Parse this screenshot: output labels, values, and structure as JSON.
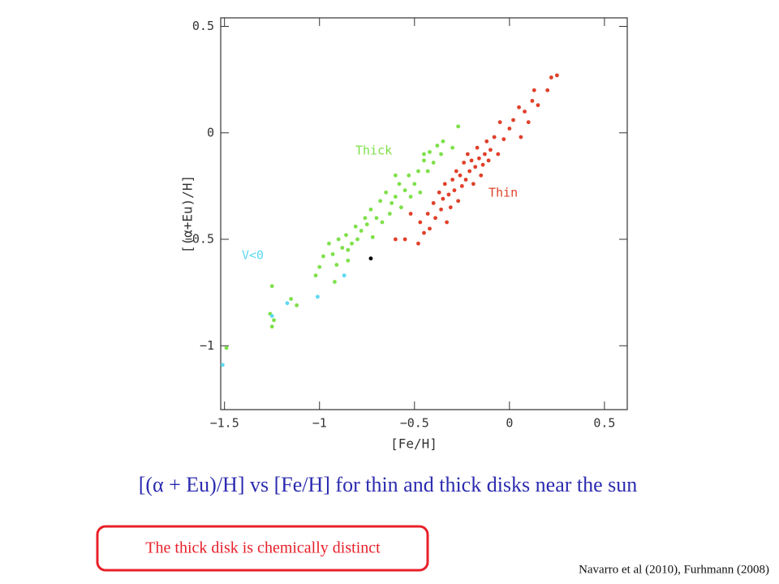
{
  "chart_data": {
    "type": "scatter",
    "xlabel": "[Fe/H]",
    "ylabel": "[(α+Eu)/H]",
    "xlim": [
      -1.52,
      0.62
    ],
    "ylim": [
      -1.3,
      0.54
    ],
    "xticks": [
      {
        "value": -1.5,
        "label": "−1.5"
      },
      {
        "value": -1,
        "label": "−1"
      },
      {
        "value": -0.5,
        "label": "−0.5"
      },
      0,
      0.5
    ],
    "yticks": [
      {
        "value": -1,
        "label": "−1"
      },
      {
        "value": -0.5,
        "label": "−0.5"
      },
      0,
      0.5
    ],
    "series": [
      {
        "name": "Thin",
        "color": "#e0402a",
        "x": [
          -0.48,
          -0.45,
          -0.47,
          -0.43,
          -0.42,
          -0.4,
          -0.39,
          -0.37,
          -0.36,
          -0.35,
          -0.34,
          -0.33,
          -0.32,
          -0.31,
          -0.3,
          -0.29,
          -0.28,
          -0.27,
          -0.26,
          -0.25,
          -0.24,
          -0.23,
          -0.22,
          -0.21,
          -0.2,
          -0.19,
          -0.18,
          -0.17,
          -0.16,
          -0.15,
          -0.14,
          -0.13,
          -0.12,
          -0.11,
          -0.1,
          -0.08,
          -0.06,
          -0.05,
          -0.03,
          0.0,
          0.02,
          0.05,
          0.06,
          0.08,
          0.1,
          0.12,
          0.13,
          0.15,
          0.2,
          0.22,
          0.25,
          -0.55,
          -0.6,
          -0.52
        ],
        "values": [
          -0.52,
          -0.47,
          -0.42,
          -0.38,
          -0.45,
          -0.33,
          -0.4,
          -0.28,
          -0.36,
          -0.31,
          -0.24,
          -0.42,
          -0.29,
          -0.35,
          -0.22,
          -0.27,
          -0.18,
          -0.32,
          -0.2,
          -0.25,
          -0.14,
          -0.22,
          -0.1,
          -0.18,
          -0.13,
          -0.24,
          -0.16,
          -0.07,
          -0.12,
          -0.2,
          -0.15,
          -0.1,
          -0.04,
          -0.13,
          -0.08,
          -0.02,
          -0.1,
          0.05,
          -0.03,
          0.02,
          0.06,
          0.12,
          -0.02,
          0.1,
          0.05,
          0.15,
          0.2,
          0.13,
          0.2,
          0.26,
          0.27,
          -0.5,
          -0.5,
          -0.38
        ]
      },
      {
        "name": "Thick",
        "color": "#7ee04a",
        "x": [
          -1.49,
          -1.25,
          -1.26,
          -1.25,
          -1.24,
          -1.12,
          -1.15,
          -1.02,
          -1.0,
          -0.98,
          -0.95,
          -0.93,
          -0.91,
          -0.9,
          -0.88,
          -0.86,
          -0.85,
          -0.83,
          -0.81,
          -0.8,
          -0.78,
          -0.76,
          -0.75,
          -0.73,
          -0.72,
          -0.7,
          -0.68,
          -0.67,
          -0.65,
          -0.63,
          -0.62,
          -0.6,
          -0.58,
          -0.57,
          -0.55,
          -0.53,
          -0.52,
          -0.5,
          -0.48,
          -0.47,
          -0.45,
          -0.43,
          -0.42,
          -0.4,
          -0.38,
          -0.36,
          -0.35,
          -0.3,
          -0.27,
          -0.45,
          -0.6,
          -0.85,
          -0.92
        ],
        "values": [
          -1.01,
          -0.72,
          -0.85,
          -0.91,
          -0.88,
          -0.81,
          -0.78,
          -0.67,
          -0.63,
          -0.58,
          -0.52,
          -0.57,
          -0.62,
          -0.5,
          -0.54,
          -0.48,
          -0.55,
          -0.52,
          -0.44,
          -0.5,
          -0.46,
          -0.4,
          -0.43,
          -0.36,
          -0.49,
          -0.4,
          -0.32,
          -0.42,
          -0.28,
          -0.38,
          -0.33,
          -0.3,
          -0.24,
          -0.35,
          -0.27,
          -0.2,
          -0.3,
          -0.24,
          -0.18,
          -0.28,
          -0.13,
          -0.18,
          -0.09,
          -0.14,
          -0.06,
          -0.1,
          -0.04,
          -0.07,
          0.03,
          -0.1,
          -0.2,
          -0.6,
          -0.7
        ]
      },
      {
        "name": "V<0",
        "color": "#5fd8f0",
        "x": [
          -1.51,
          -1.25,
          -1.17,
          -1.01,
          -0.87
        ],
        "values": [
          -1.09,
          -0.86,
          -0.8,
          -0.77,
          -0.67
        ]
      },
      {
        "color": "#000000",
        "x": [
          -0.73
        ],
        "values": [
          -0.59
        ]
      }
    ]
  },
  "caption": "[(α + Eu)/H]  vs [Fe/H] for thin and thick disks near the sun",
  "callout": "The thick disk is chemically distinct",
  "credit": "Navarro et al (2010), Furhmann (2008)"
}
